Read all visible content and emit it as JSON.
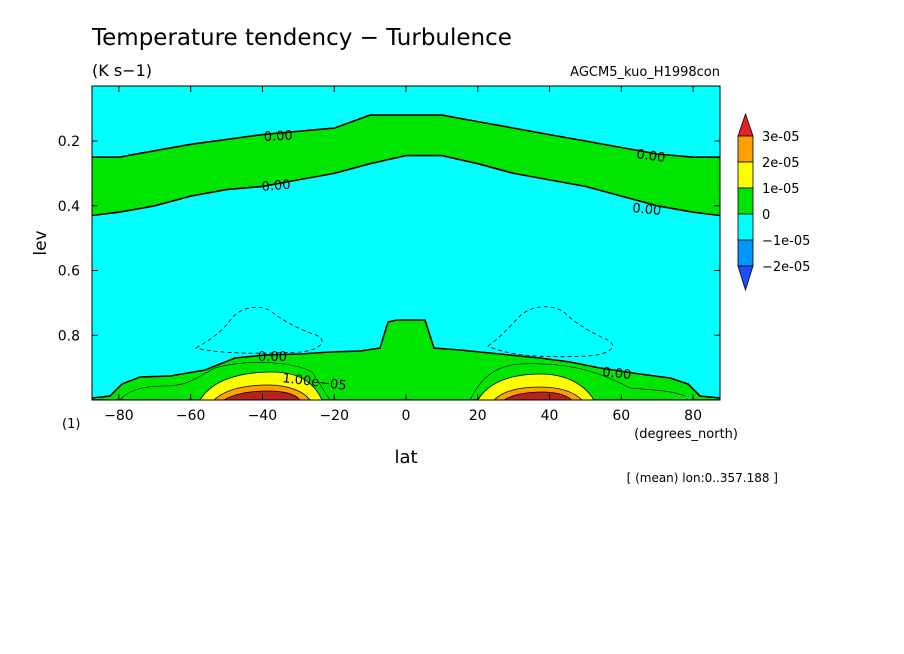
{
  "chart_data": {
    "type": "contour",
    "title": "Temperature tendency − Turbulence",
    "units": "(K s−1)",
    "dataset": "AGCM5_kuo_H1998con",
    "xlabel": "lat",
    "xunits": "(degrees_north)",
    "ylabel": "lev",
    "yunits": "(1)",
    "footer": "[ (mean) lon:0..357.188 ]",
    "xlim": [
      -87.5,
      87.5
    ],
    "ylim": [
      1.0,
      0.03
    ],
    "x_ticks": [
      -80,
      -60,
      -40,
      -20,
      0,
      20,
      40,
      60,
      80
    ],
    "x_tick_labels": [
      "−80",
      "−60",
      "−40",
      "−20",
      "0",
      "20",
      "40",
      "60",
      "80"
    ],
    "y_ticks": [
      0.2,
      0.4,
      0.6,
      0.8
    ],
    "y_tick_labels": [
      "0.2",
      "0.4",
      "0.6",
      "0.8"
    ],
    "colorbar": {
      "levels": [
        {
          "label": "3e-05",
          "value": 3e-05
        },
        {
          "label": "2e-05",
          "value": 2e-05
        },
        {
          "label": "1e-05",
          "value": 1e-05
        },
        {
          "label": "0",
          "value": 0
        },
        {
          "label": "−1e-05",
          "value": -1e-05
        },
        {
          "label": "−2e-05",
          "value": -2e-05
        }
      ],
      "colors": [
        "#e8222a",
        "#ff9f00",
        "#ffff00",
        "#00e600",
        "#00ffff",
        "#0096ff",
        "#1e50ff"
      ]
    },
    "contour_labels": [
      "0.00",
      "0.00",
      "0.00",
      "0.00",
      "0.00",
      "0.00",
      "1.00e−05"
    ],
    "upper_band": {
      "lat": [
        -87.5,
        -80,
        -70,
        -60,
        -50,
        -40,
        -30,
        -20,
        -10,
        0,
        10,
        20,
        30,
        40,
        50,
        60,
        70,
        80,
        87.5
      ],
      "lev_top": [
        0.25,
        0.25,
        0.23,
        0.21,
        0.195,
        0.18,
        0.17,
        0.16,
        0.12,
        0.12,
        0.12,
        0.14,
        0.16,
        0.18,
        0.2,
        0.22,
        0.24,
        0.25,
        0.25
      ],
      "lev_bottom": [
        0.43,
        0.42,
        0.4,
        0.37,
        0.35,
        0.34,
        0.32,
        0.3,
        0.27,
        0.245,
        0.245,
        0.27,
        0.3,
        0.32,
        0.34,
        0.37,
        0.4,
        0.42,
        0.43
      ]
    }
  }
}
